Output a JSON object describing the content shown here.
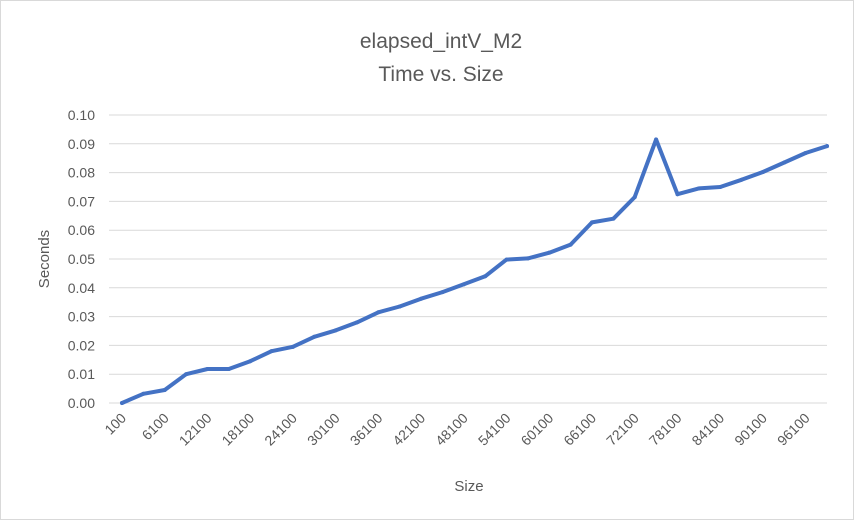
{
  "chart_data": {
    "type": "line",
    "title": "elapsed_intV_M2",
    "subtitle": "Time vs. Size",
    "xlabel": "Size",
    "ylabel": "Seconds",
    "ylim": [
      0,
      0.1
    ],
    "y_ticks": [
      "0.00",
      "0.01",
      "0.02",
      "0.03",
      "0.04",
      "0.05",
      "0.06",
      "0.07",
      "0.08",
      "0.09",
      "0.10"
    ],
    "x_tick_labels": [
      "100",
      "6100",
      "12100",
      "18100",
      "24100",
      "30100",
      "36100",
      "42100",
      "48100",
      "54100",
      "60100",
      "66100",
      "72100",
      "78100",
      "84100",
      "90100",
      "96100"
    ],
    "grid": true,
    "legend": "none",
    "series_color": "#4472C4",
    "x": [
      100,
      3100,
      6100,
      9100,
      12100,
      15100,
      18100,
      21100,
      24100,
      27100,
      30100,
      33100,
      36100,
      39100,
      42100,
      45100,
      48100,
      51100,
      54100,
      57100,
      60100,
      63100,
      66100,
      69100,
      72100,
      75100,
      78100,
      81100,
      84100,
      87100,
      90100,
      93100,
      96100,
      99100
    ],
    "series": [
      {
        "values": [
          0.0,
          0.0032,
          0.0045,
          0.01,
          0.0118,
          0.0118,
          0.0145,
          0.018,
          0.0195,
          0.023,
          0.0252,
          0.028,
          0.0315,
          0.0335,
          0.0362,
          0.0385,
          0.0412,
          0.044,
          0.0498,
          0.0502,
          0.0522,
          0.055,
          0.0627,
          0.064,
          0.0715,
          0.0915,
          0.0725,
          0.0745,
          0.075,
          0.0775,
          0.0802,
          0.0835,
          0.0868,
          0.0892
        ]
      }
    ]
  }
}
